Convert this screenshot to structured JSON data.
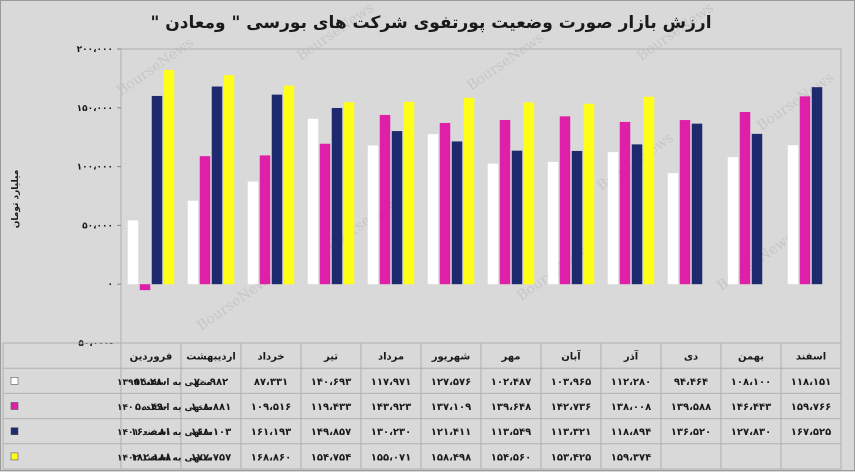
{
  "chart_data": {
    "type": "bar",
    "title": "ارزش بازار صورت وضعیت پورتفوی شرکت های بورسی \" ومعادن \"",
    "ylabel": "میلیارد تومان",
    "ylim": [
      -50000,
      200000
    ],
    "yticks": [
      -50000,
      0,
      50000,
      100000,
      150000,
      200000
    ],
    "ytick_labels": [
      "۵۰،۰۰۰-",
      "۰",
      "۵۰،۰۰۰",
      "۱۰۰،۰۰۰",
      "۱۵۰،۰۰۰",
      "۲۰۰،۰۰۰"
    ],
    "grid": false,
    "legend": "table-left",
    "categories": [
      "فروردین",
      "اردیبهشت",
      "خرداد",
      "تیر",
      "مرداد",
      "شهریور",
      "مهر",
      "آبان",
      "آذر",
      "دی",
      "بهمن",
      "اسفند"
    ],
    "series": [
      {
        "name": "منتهی به اسفند ۱۳۹۹",
        "color": "#ffffff",
        "values": [
          54280,
          70982,
          87331,
          140693,
          117971,
          127576,
          102487,
          103965,
          112280,
          94464,
          108100,
          118151
        ],
        "labels": [
          "۵۴،۲۸۰",
          "۷۰،۹۸۲",
          "۸۷،۳۳۱",
          "۱۴۰،۶۹۳",
          "۱۱۷،۹۷۱",
          "۱۲۷،۵۷۶",
          "۱۰۲،۴۸۷",
          "۱۰۳،۹۶۵",
          "۱۱۲،۲۸۰",
          "۹۴،۴۶۴",
          "۱۰۸،۱۰۰",
          "۱۱۸،۱۵۱"
        ]
      },
      {
        "name": "منتهی به اسفند ۱۴۰۰",
        "color": "#e01fa8",
        "values": [
          -5049,
          108881,
          109516,
          119433,
          143923,
          137109,
          139648,
          142736,
          138008,
          139588,
          146443,
          159766
        ],
        "labels": [
          "۵،۰۴۹-",
          "۱۰۸،۸۸۱",
          "۱۰۹،۵۱۶",
          "۱۱۹،۴۳۳",
          "۱۴۳،۹۲۳",
          "۱۳۷،۱۰۹",
          "۱۳۹،۶۴۸",
          "۱۴۲،۷۳۶",
          "۱۳۸،۰۰۸",
          "۱۳۹،۵۸۸",
          "۱۴۶،۴۴۳",
          "۱۵۹،۷۶۶"
        ]
      },
      {
        "name": "منتهی به اسفند ۱۴۰۱",
        "color": "#1d2b6e",
        "values": [
          160081,
          168103,
          161193,
          149857,
          130230,
          121411,
          113549,
          113321,
          118894,
          136520,
          127830,
          167525
        ],
        "labels": [
          "۱۶۰،۰۸۱",
          "۱۶۸،۱۰۳",
          "۱۶۱،۱۹۳",
          "۱۴۹،۸۵۷",
          "۱۳۰،۲۳۰",
          "۱۲۱،۴۱۱",
          "۱۱۳،۵۴۹",
          "۱۱۳،۳۲۱",
          "۱۱۸،۸۹۴",
          "۱۳۶،۵۲۰",
          "۱۲۷،۸۳۰",
          "۱۶۷،۵۲۵"
        ]
      },
      {
        "name": "منتهی به اسفند ۱۴۰۲",
        "color": "#ffff1a",
        "values": [
          182188,
          177757,
          168860,
          154754,
          155071,
          158498,
          154560,
          153425,
          159374,
          null,
          null,
          null
        ],
        "labels": [
          "۱۸۲،۱۸۸",
          "۱۷۷،۷۵۷",
          "۱۶۸،۸۶۰",
          "۱۵۴،۷۵۴",
          "۱۵۵،۰۷۱",
          "۱۵۸،۴۹۸",
          "۱۵۴،۵۶۰",
          "۱۵۳،۴۲۵",
          "۱۵۹،۳۷۴",
          "",
          "",
          ""
        ]
      }
    ]
  },
  "watermark": "BourseNews"
}
